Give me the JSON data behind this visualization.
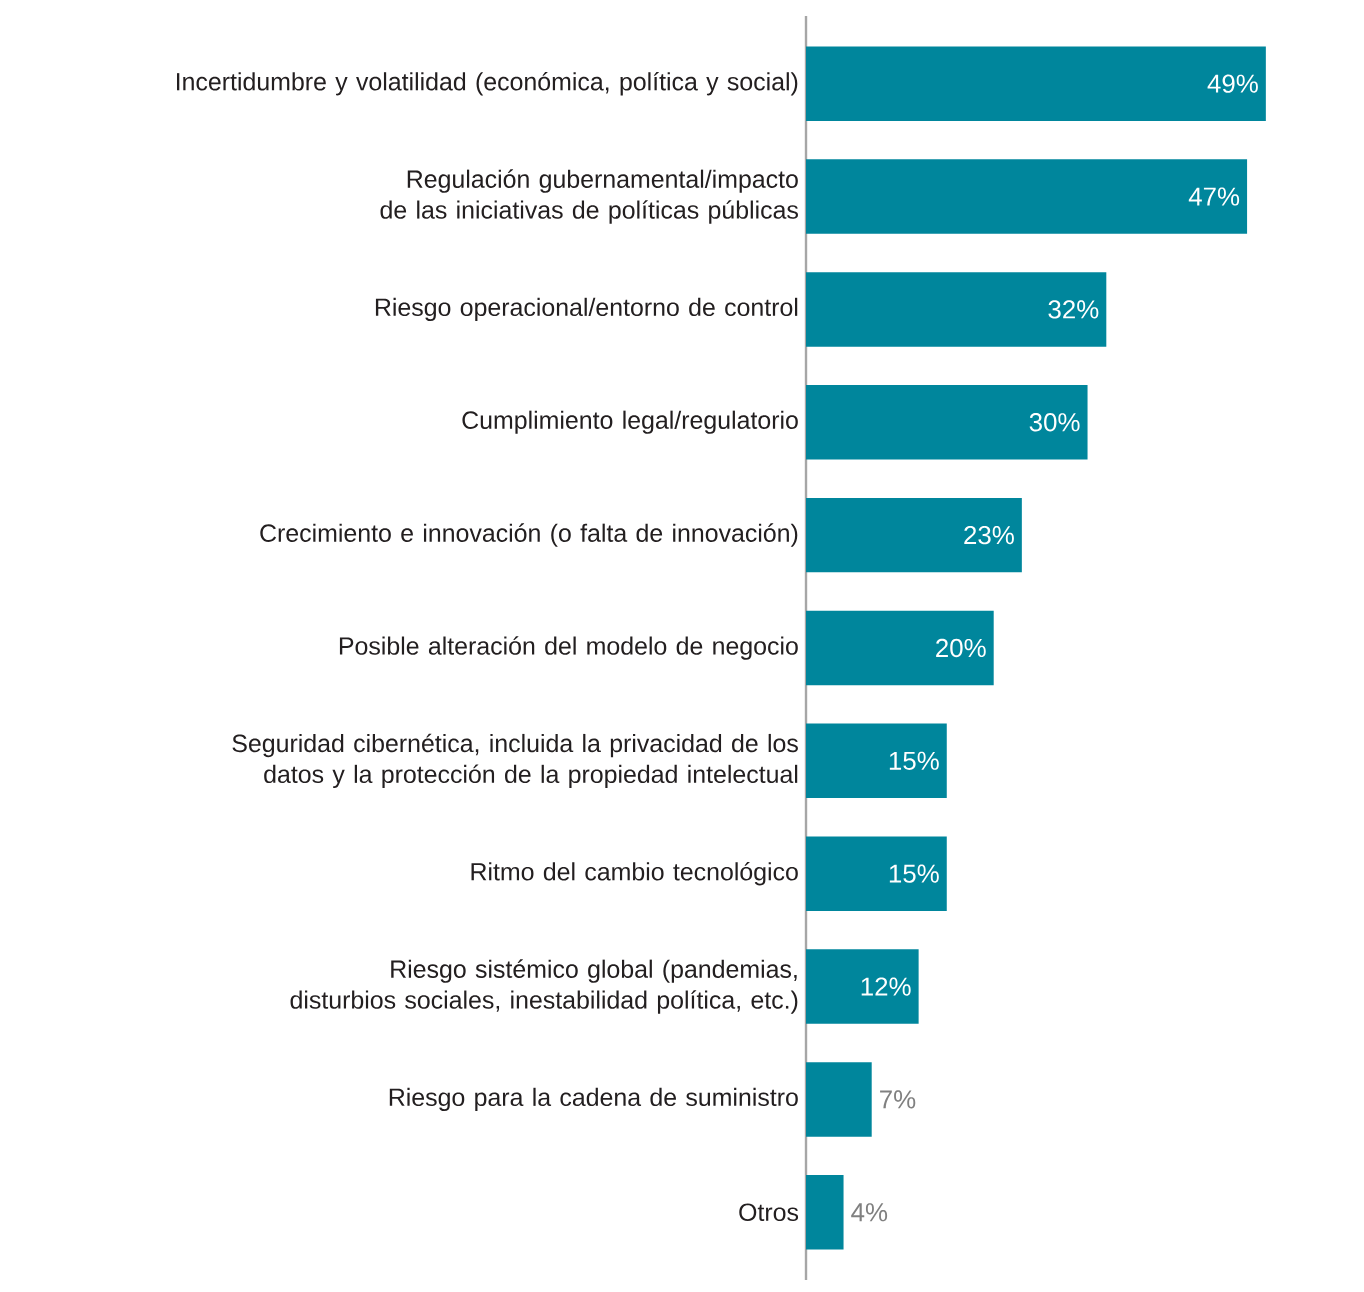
{
  "chart_data": {
    "type": "bar",
    "orientation": "horizontal",
    "categories": [
      "Incertidumbre y volatilidad (económica, política y social)",
      "Regulación gubernamental/impacto de las iniciativas de políticas públicas",
      "Riesgo operacional/entorno de control",
      "Cumplimiento legal/regulatorio",
      "Crecimiento e innovación (o falta de innovación)",
      "Posible alteración del modelo de negocio",
      "Seguridad cibernética, incluida la privacidad de los datos y la protección de la propiedad intelectual",
      "Ritmo del cambio tecnológico",
      "Riesgo sistémico global (pandemias, disturbios sociales, inestabilidad política, etc.)",
      "Riesgo para la cadena de suministro",
      "Otros"
    ],
    "values": [
      49,
      47,
      32,
      30,
      23,
      20,
      15,
      15,
      12,
      7,
      4
    ],
    "value_labels": [
      "49%",
      "47%",
      "32%",
      "30%",
      "23%",
      "20%",
      "15%",
      "15%",
      "12%",
      "7%",
      "4%"
    ],
    "color": "#00869c",
    "tick_labels": "y"
  }
}
